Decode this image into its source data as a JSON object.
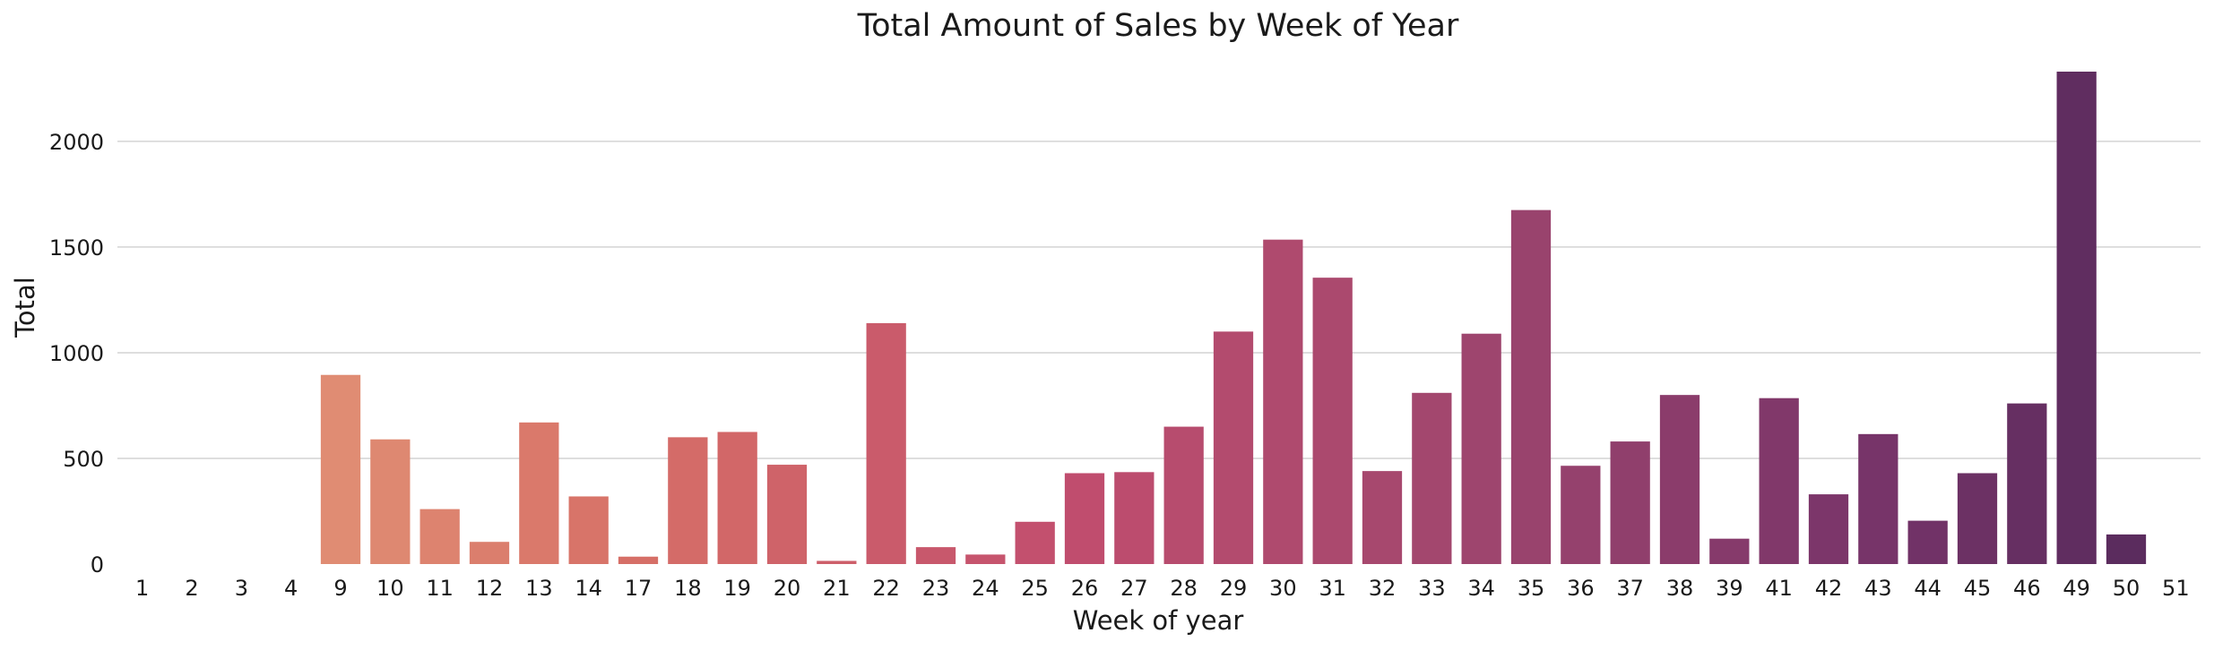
{
  "chart_data": {
    "type": "bar",
    "title": "Total Amount of Sales by Week of Year",
    "xlabel": "Week of year",
    "ylabel": "Total",
    "ylim": [
      0,
      2330
    ],
    "yticks": [
      0,
      500,
      1000,
      1500,
      2000
    ],
    "grid": "horizontal",
    "palette": "flare (light orange to dark purple)",
    "categories": [
      "1",
      "2",
      "3",
      "4",
      "9",
      "10",
      "11",
      "12",
      "13",
      "14",
      "17",
      "18",
      "19",
      "20",
      "21",
      "22",
      "23",
      "24",
      "25",
      "26",
      "27",
      "28",
      "29",
      "30",
      "31",
      "32",
      "33",
      "34",
      "35",
      "36",
      "37",
      "38",
      "39",
      "41",
      "42",
      "43",
      "44",
      "45",
      "46",
      "49",
      "50",
      "51"
    ],
    "values": [
      0,
      0,
      0,
      0,
      895,
      590,
      260,
      105,
      670,
      320,
      35,
      600,
      625,
      470,
      15,
      1140,
      80,
      45,
      200,
      430,
      435,
      650,
      1100,
      1535,
      1355,
      440,
      810,
      1090,
      1675,
      465,
      580,
      800,
      120,
      785,
      330,
      615,
      205,
      430,
      760,
      2330,
      140,
      0
    ]
  }
}
